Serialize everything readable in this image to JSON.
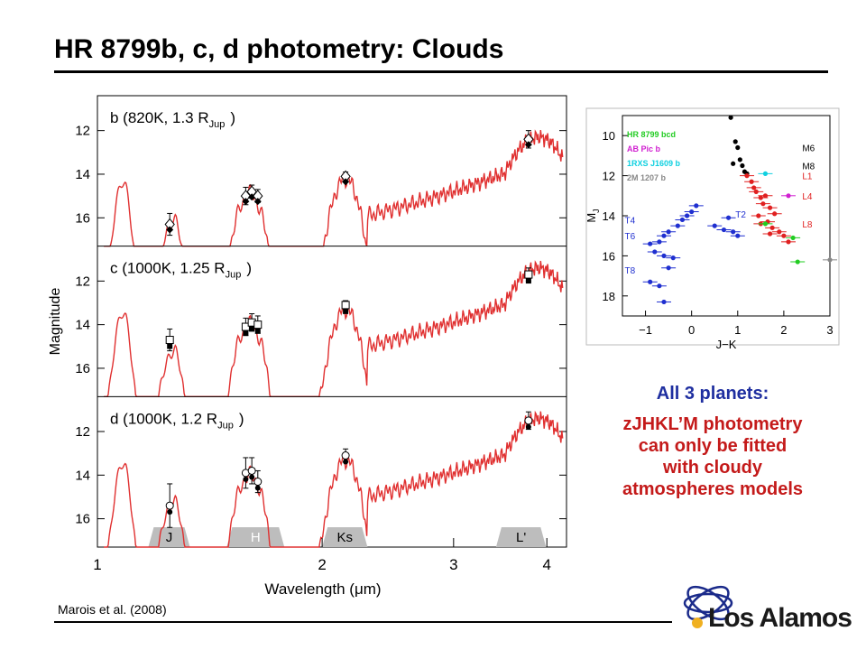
{
  "slide": {
    "title": "HR 8799b, c, d photometry: Clouds",
    "citation": "Marois et al. (2008)",
    "summary_head": "All 3 planets:",
    "summary_body_lines": [
      "zJHKL’M photometry",
      "can only be fitted",
      "with cloudy",
      "atmospheres models"
    ],
    "logo_text": "Los Alamos"
  },
  "colors": {
    "model": "#e03030",
    "title_blue": "#1f2fa0",
    "summary_red": "#c41a1a"
  },
  "chart_data": [
    {
      "type": "line",
      "xlabel": "Wavelength (μm)",
      "ylabel": "Magnitude",
      "x_scale": "log",
      "xlim": [
        1.0,
        4.25
      ],
      "x_ticks": [
        "1",
        "2",
        "3",
        "4"
      ],
      "bands": [
        "J",
        "H",
        "Ks",
        "L'"
      ],
      "panels": [
        {
          "label": "b (820K, 1.3 R",
          "label_sub": "Jup",
          "label_end": ")",
          "ylim": [
            17.3,
            10.4
          ],
          "y_ticks": [
            12,
            14,
            16
          ],
          "points": [
            {
              "x": 1.25,
              "y": 16.3,
              "err": 0.5
            },
            {
              "x": 1.58,
              "y": 15.0,
              "err": 0.4
            },
            {
              "x": 1.61,
              "y": 14.8,
              "err": 0.3
            },
            {
              "x": 1.64,
              "y": 15.0,
              "err": 0.3
            },
            {
              "x": 2.15,
              "y": 14.1,
              "err": 0.2
            },
            {
              "x": 3.78,
              "y": 12.4,
              "err": 0.4
            }
          ]
        },
        {
          "label": "c (1000K, 1.25 R",
          "label_sub": "Jup",
          "label_end": ")",
          "ylim": [
            17.3,
            10.4
          ],
          "y_ticks": [
            12,
            14,
            16
          ],
          "points": [
            {
              "x": 1.25,
              "y": 14.7,
              "err": 0.5
            },
            {
              "x": 1.58,
              "y": 14.1,
              "err": 0.4
            },
            {
              "x": 1.61,
              "y": 13.9,
              "err": 0.4
            },
            {
              "x": 1.64,
              "y": 14.0,
              "err": 0.4
            },
            {
              "x": 2.15,
              "y": 13.1,
              "err": 0.2
            },
            {
              "x": 3.78,
              "y": 11.7,
              "err": 0.3
            }
          ]
        },
        {
          "label": "d (1000K, 1.2 R",
          "label_sub": "Jup",
          "label_end": ")",
          "ylim": [
            17.3,
            10.4
          ],
          "y_ticks": [
            12,
            14,
            16
          ],
          "points": [
            {
              "x": 1.25,
              "y": 15.4,
              "err": 1.0
            },
            {
              "x": 1.58,
              "y": 13.9,
              "err": 0.7
            },
            {
              "x": 1.61,
              "y": 13.8,
              "err": 0.6
            },
            {
              "x": 1.64,
              "y": 14.3,
              "err": 0.5
            },
            {
              "x": 2.15,
              "y": 13.1,
              "err": 0.3
            },
            {
              "x": 3.78,
              "y": 11.5,
              "err": 0.4
            }
          ]
        }
      ]
    },
    {
      "type": "scatter",
      "xlabel": "J−K",
      "ylabel": "M",
      "ylabel_sub": "J",
      "xlim": [
        -1.5,
        3.0
      ],
      "ylim": [
        19.0,
        9.0
      ],
      "x_ticks": [
        -1,
        0,
        1,
        2,
        3
      ],
      "y_ticks": [
        10,
        12,
        14,
        16,
        18
      ],
      "legend": [
        {
          "name": "HR 8799 bcd",
          "color": "#22cc22"
        },
        {
          "name": "AB Pic b",
          "color": "#d020d0"
        },
        {
          "name": "1RXS J1609 b",
          "color": "#10d0e0"
        },
        {
          "name": "2M 1207 b",
          "color": "#888888"
        }
      ],
      "annotations": [
        {
          "text": "M6",
          "x": 2.4,
          "y": 10.6,
          "color": "#000000"
        },
        {
          "text": "M8",
          "x": 2.4,
          "y": 11.5,
          "color": "#000000"
        },
        {
          "text": "L1",
          "x": 2.4,
          "y": 12.0,
          "color": "#e02020"
        },
        {
          "text": "L4",
          "x": 2.4,
          "y": 13.0,
          "color": "#e02020"
        },
        {
          "text": "L8",
          "x": 2.4,
          "y": 14.4,
          "color": "#e02020"
        },
        {
          "text": "T2",
          "x": 0.95,
          "y": 13.9,
          "color": "#1f2fd0"
        },
        {
          "text": "T4",
          "x": -1.45,
          "y": 14.2,
          "color": "#1f2fd0"
        },
        {
          "text": "T6",
          "x": -1.45,
          "y": 15.0,
          "color": "#1f2fd0"
        },
        {
          "text": "T8",
          "x": -1.45,
          "y": 16.7,
          "color": "#1f2fd0"
        }
      ],
      "series": [
        {
          "name": "M dwarfs",
          "color": "#000000",
          "x": [
            0.85,
            0.95,
            1.0,
            1.05,
            0.9,
            1.1,
            1.15,
            1.2
          ],
          "y": [
            9.1,
            10.3,
            10.6,
            11.2,
            11.4,
            11.5,
            11.8,
            11.9
          ]
        },
        {
          "name": "L dwarfs",
          "color": "#e02020",
          "x": [
            1.2,
            1.3,
            1.35,
            1.4,
            1.5,
            1.6,
            1.55,
            1.7,
            1.8,
            1.45,
            1.65,
            1.75,
            1.9,
            2.0,
            2.1,
            1.5,
            1.7
          ],
          "y": [
            12.0,
            12.3,
            12.6,
            12.8,
            13.1,
            13.0,
            13.4,
            13.6,
            13.9,
            14.0,
            14.3,
            14.6,
            14.8,
            15.0,
            15.3,
            14.4,
            14.9
          ]
        },
        {
          "name": "T dwarfs",
          "color": "#1f2fd0",
          "x": [
            -0.9,
            -0.7,
            -0.6,
            -0.5,
            -0.3,
            -0.2,
            -0.1,
            0.0,
            0.1,
            -0.8,
            -0.6,
            -0.4,
            -0.5,
            -0.7,
            -0.9,
            -0.6,
            0.5,
            0.7,
            0.9,
            1.0,
            0.8
          ],
          "y": [
            15.4,
            15.3,
            15.0,
            14.8,
            14.5,
            14.2,
            14.0,
            13.8,
            13.5,
            15.8,
            16.0,
            16.1,
            16.6,
            17.5,
            17.3,
            18.3,
            14.5,
            14.7,
            14.8,
            15.0,
            14.1
          ]
        },
        {
          "name": "HR 8799 bcd",
          "color": "#22cc22",
          "x": [
            1.6,
            2.2,
            2.3
          ],
          "y": [
            14.4,
            15.1,
            16.3
          ]
        },
        {
          "name": "AB Pic b",
          "color": "#d020d0",
          "x": [
            2.1
          ],
          "y": [
            13.0
          ]
        },
        {
          "name": "1RXS J1609 b",
          "color": "#10d0e0",
          "x": [
            1.6
          ],
          "y": [
            11.9
          ]
        },
        {
          "name": "2M 1207 b",
          "color": "#888888",
          "x": [
            3.0
          ],
          "y": [
            16.2
          ]
        }
      ]
    }
  ]
}
